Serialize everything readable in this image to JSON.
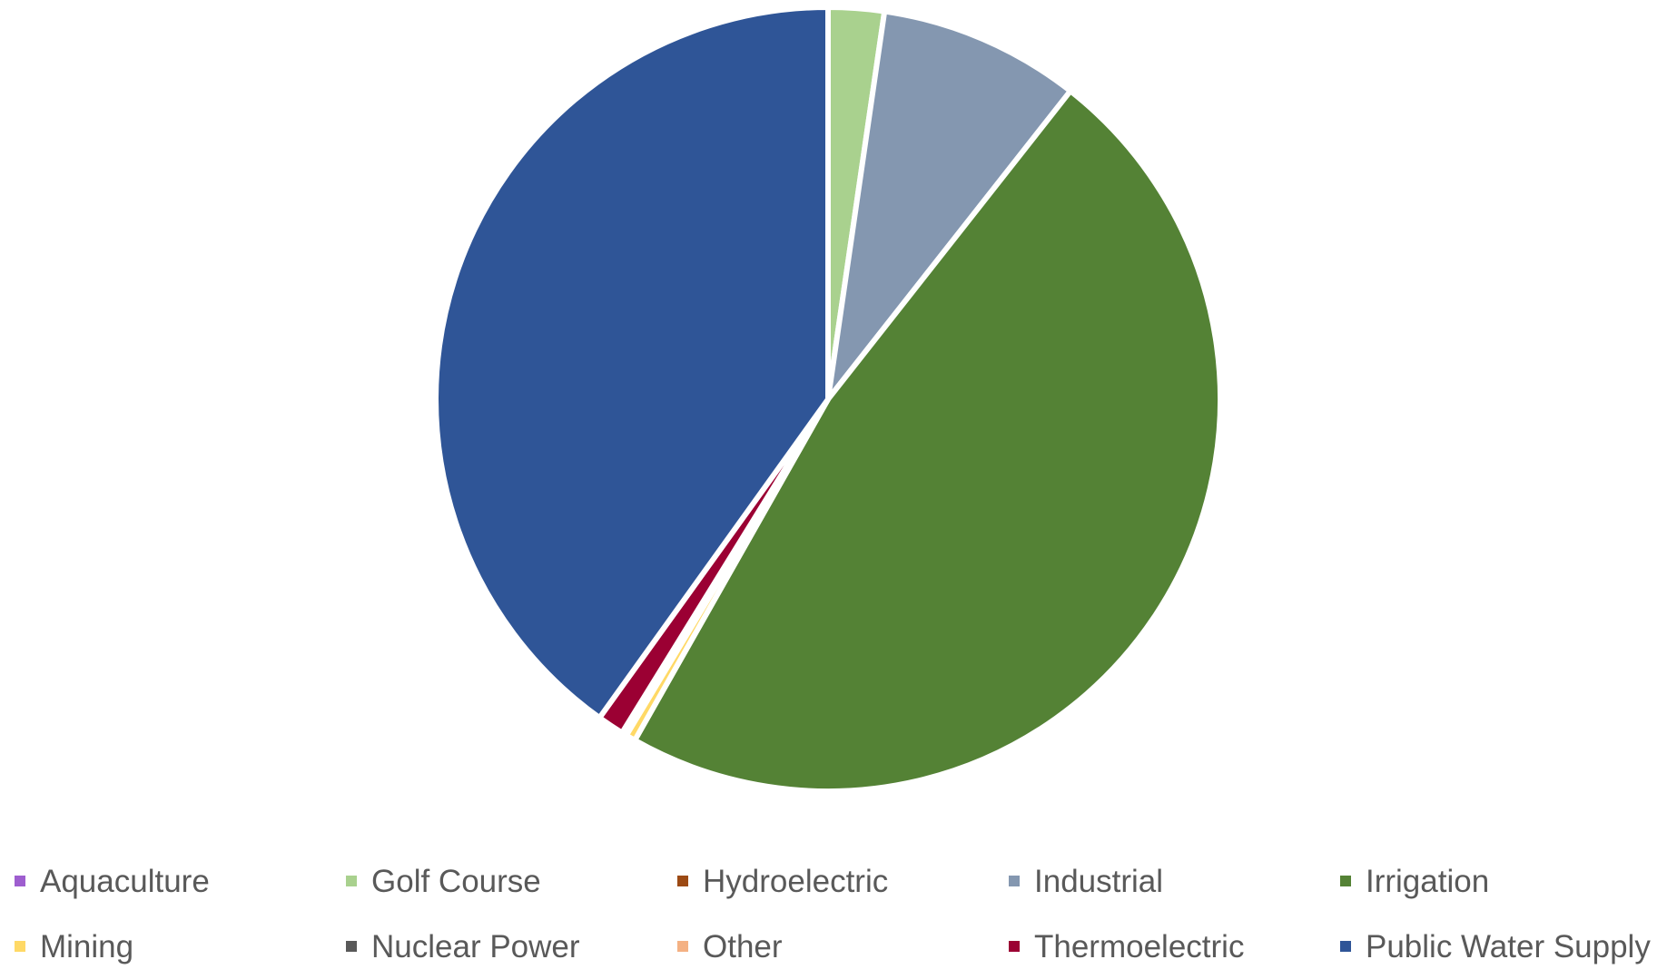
{
  "chart_data": {
    "type": "pie",
    "title": "",
    "legend_placement": "bottom",
    "start_angle_deg": 0,
    "direction": "clockwise",
    "slices": [
      {
        "name": "Aquaculture",
        "value": 0.0,
        "color": "#9e5ecf"
      },
      {
        "name": "Golf Course",
        "value": 2.3,
        "color": "#a9d18e"
      },
      {
        "name": "Hydroelectric",
        "value": 0.0,
        "color": "#9c4a14"
      },
      {
        "name": "Industrial",
        "value": 8.3,
        "color": "#8497b0"
      },
      {
        "name": "Irrigation",
        "value": 47.6,
        "color": "#548235"
      },
      {
        "name": "Mining",
        "value": 0.4,
        "color": "#ffd966"
      },
      {
        "name": "Nuclear Power",
        "value": 0.2,
        "color": "#595959"
      },
      {
        "name": "Other",
        "value": 0.0,
        "color": "#f4b183"
      },
      {
        "name": "Thermoelectric",
        "value": 1.1,
        "color": "#9b0033"
      },
      {
        "name": "Public Water Supply",
        "value": 40.1,
        "color": "#2f5597"
      }
    ]
  }
}
